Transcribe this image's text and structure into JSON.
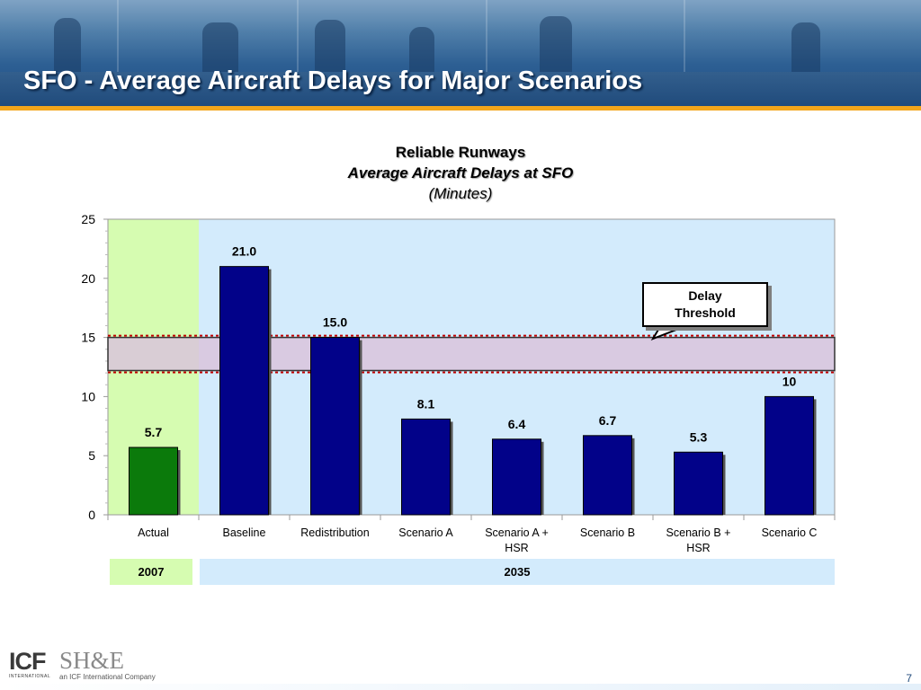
{
  "slide": {
    "title": "SFO - Average Aircraft Delays for Major Scenarios",
    "page_number": "7"
  },
  "chart_header": {
    "line1": "Reliable Runways",
    "line2": "Average Aircraft Delays at SFO",
    "line3": "(Minutes)"
  },
  "callout": {
    "line1": "Delay",
    "line2": "Threshold"
  },
  "periods": {
    "p2007": "2007",
    "p2035": "2035"
  },
  "logos": {
    "icf_mark": "ICF",
    "icf_sub": "INTERNATIONAL",
    "she_mark": "SH&E",
    "she_sub": "an ICF International Company"
  },
  "colors": {
    "bar_actual": "#0b7a0b",
    "bar_scenario": "#020289",
    "panel_2007": "#d6fcb1",
    "panel_2035": "#d3ebfc",
    "threshold_band": "#d9c4dc",
    "threshold_line": "#c00000",
    "title_rule": "#f3a51a"
  },
  "chart_data": {
    "type": "bar",
    "title": "Reliable Runways",
    "subtitle": "Average Aircraft Delays at SFO",
    "ylabel": "(Minutes)",
    "xlabel": "",
    "ylim": [
      0,
      25
    ],
    "yticks": [
      "0",
      "5",
      "10",
      "15",
      "20",
      "25"
    ],
    "grid": false,
    "categories": [
      [
        "Actual"
      ],
      [
        "Baseline"
      ],
      [
        "Redistribution"
      ],
      [
        "Scenario A"
      ],
      [
        "Scenario A +",
        "HSR"
      ],
      [
        "Scenario B"
      ],
      [
        "Scenario B +",
        "HSR"
      ],
      [
        "Scenario C"
      ]
    ],
    "values": [
      5.7,
      21.0,
      15.0,
      8.1,
      6.4,
      6.7,
      5.3,
      10
    ],
    "labels": [
      "5.7",
      "21.0",
      "15.0",
      "8.1",
      "6.4",
      "6.7",
      "5.3",
      "10"
    ],
    "threshold_band": [
      12.2,
      15.0
    ],
    "annotation": "Delay Threshold",
    "periods": [
      {
        "label": "2007",
        "categories": [
          0
        ]
      },
      {
        "label": "2035",
        "categories": [
          1,
          2,
          3,
          4,
          5,
          6,
          7
        ]
      }
    ]
  }
}
